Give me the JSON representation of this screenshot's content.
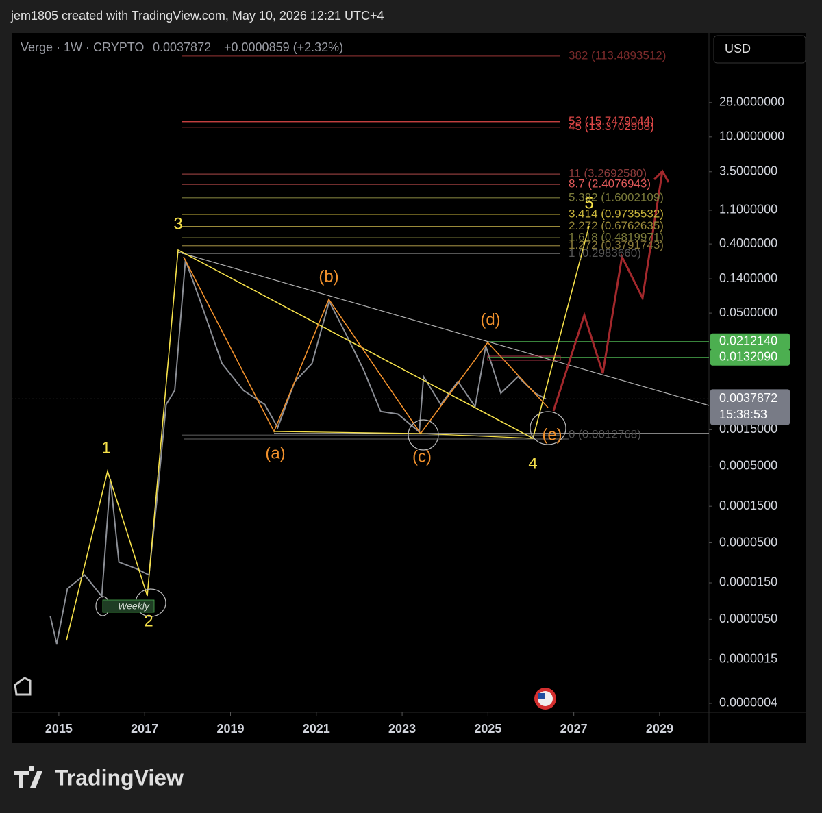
{
  "header": {
    "caption": "jem1805 created with TradingView.com, May 10, 2026 12:21 UTC+4"
  },
  "legend": {
    "symbol": "Verge · 1W · CRYPTO",
    "price": 0.0037872,
    "change": "+0.0000859 (+2.32%)"
  },
  "currency_button": "USD",
  "footer": {
    "brand": "TradingView"
  },
  "annotations": {
    "waves": [
      "1",
      "2",
      "3",
      "4",
      "5",
      "(a)",
      "(b)",
      "(c)",
      "(d)",
      "(e)"
    ],
    "note": "Weekly"
  },
  "chart_data": {
    "type": "line",
    "log_scale": true,
    "color": "#8c8f96",
    "x": [
      2014.8,
      2014.95,
      2015.2,
      2015.6,
      2016.0,
      2016.2,
      2016.4,
      2016.8,
      2017.1,
      2017.3,
      2017.5,
      2017.7,
      2017.95,
      2018.3,
      2018.8,
      2019.3,
      2019.8,
      2020.1,
      2020.5,
      2020.9,
      2021.3,
      2021.7,
      2022.1,
      2022.5,
      2022.9,
      2023.4,
      2023.5,
      2023.9,
      2024.3,
      2024.7,
      2024.95,
      2025.3,
      2025.7,
      2026.1,
      2026.35
    ],
    "values": [
      5.5e-06,
      2.4e-06,
      1.26e-05,
      1.9e-05,
      1e-05,
      0.00034,
      2.8e-05,
      2.3e-05,
      1.9e-05,
      0.00022,
      0.0032,
      0.0049,
      0.245,
      0.071,
      0.011,
      0.0049,
      0.0032,
      0.0016,
      0.0064,
      0.011,
      0.071,
      0.026,
      0.0091,
      0.0026,
      0.0024,
      0.0014,
      0.0074,
      0.0032,
      0.0064,
      0.003,
      0.0186,
      0.0045,
      0.0074,
      0.0045,
      0.0037872
    ],
    "xlim": [
      2013.9,
      2030.15
    ],
    "xticks": [
      2015,
      2017,
      2019,
      2021,
      2023,
      2025,
      2027,
      2029
    ],
    "ylim": [
      3.06e-07,
      100
    ],
    "yticks": [
      {
        "value": 28,
        "label": "28.0000000"
      },
      {
        "value": 10,
        "label": "10.0000000"
      },
      {
        "value": 3.5,
        "label": "3.5000000"
      },
      {
        "value": 1.1,
        "label": "1.1000000"
      },
      {
        "value": 0.4,
        "label": "0.4000000"
      },
      {
        "value": 0.14,
        "label": "0.1400000"
      },
      {
        "value": 0.05,
        "label": "0.0500000"
      },
      {
        "value": 0.0015,
        "label": "0.0015000"
      },
      {
        "value": 0.0005,
        "label": "0.0005000"
      },
      {
        "value": 0.00015,
        "label": "0.0001500"
      },
      {
        "value": 5e-05,
        "label": "0.0000500"
      },
      {
        "value": 1.5e-05,
        "label": "0.0000150"
      },
      {
        "value": 5e-06,
        "label": "0.0000050"
      },
      {
        "value": 1.5e-06,
        "label": "0.0000015"
      },
      {
        "value": 4e-07,
        "label": "0.0000004"
      }
    ],
    "fib_levels": [
      {
        "value": 113.4893512,
        "label": "382 (113.4893512)",
        "color": "#7a2a2a"
      },
      {
        "value": 15.7479044,
        "label": "53 (15.7479044)",
        "color": "#e04848"
      },
      {
        "value": 13.3702908,
        "label": "45 (13.3702908)",
        "color": "#e04848"
      },
      {
        "value": 3.269258,
        "label": "11 (3.2692580)",
        "color": "#8a3a3a"
      },
      {
        "value": 2.4076943,
        "label": "8.7 (2.4076943)",
        "color": "#e05a5a"
      },
      {
        "value": 1.6002109,
        "label": "5.382 (1.6002109)",
        "color": "#7a7a3a"
      },
      {
        "value": 0.9735532,
        "label": "3.414 (0.9735532)",
        "color": "#c8b43c"
      },
      {
        "value": 0.6762635,
        "label": "2.272 (0.6762635)",
        "color": "#9a8a3a"
      },
      {
        "value": 0.4819971,
        "label": "1.618 (0.4819971)",
        "color": "#7a7a3a"
      },
      {
        "value": 0.3791743,
        "label": "1.272 (0.3791743)",
        "color": "#8a7a3a"
      },
      {
        "value": 0.298366,
        "label": "1 (0.2983660)",
        "color": "#555555"
      },
      {
        "value": 0.0012768,
        "label": "0 (0.0012768)",
        "color": "#555555"
      }
    ],
    "price_tags": [
      {
        "value": 0.021214,
        "label": "0.0212140",
        "color": "#4caf50"
      },
      {
        "value": 0.013209,
        "label": "0.0132090",
        "color": "#4caf50"
      }
    ],
    "last_price": {
      "value": 0.0037872,
      "countdown": "15:38:53",
      "color": "#787b86"
    }
  }
}
